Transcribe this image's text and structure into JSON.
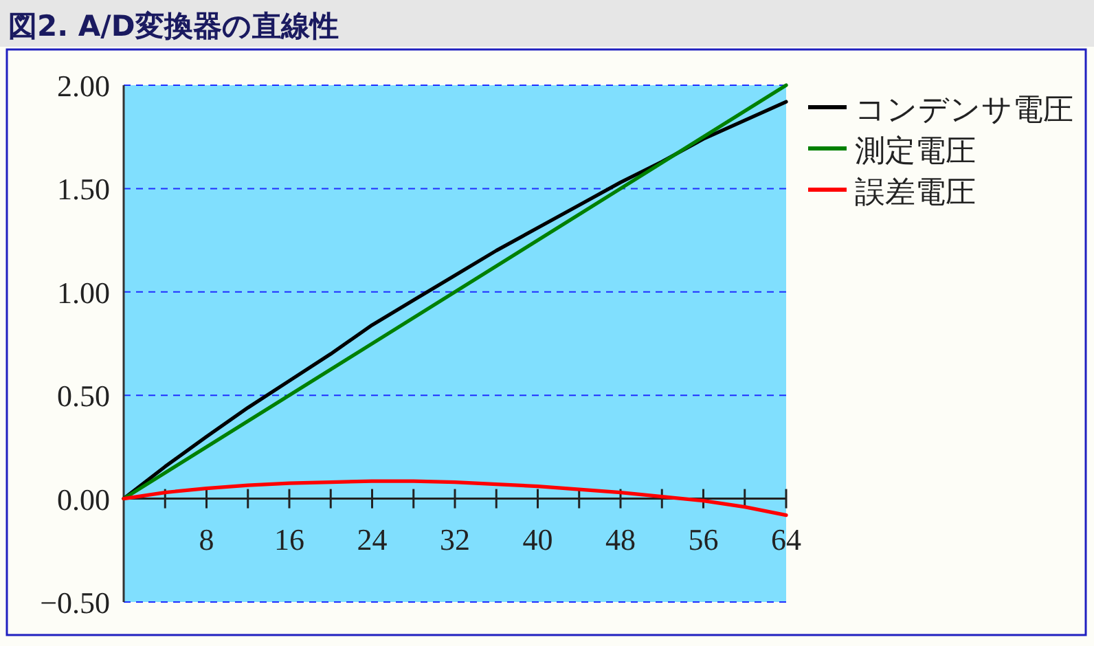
{
  "chart_data": {
    "type": "line",
    "title": "図2. A/D変換器の直線性",
    "xlim": [
      0,
      64
    ],
    "xticks": [
      {
        "value": 4,
        "label": null
      },
      {
        "value": 8,
        "label": "8"
      },
      {
        "value": 12,
        "label": null
      },
      {
        "value": 16,
        "label": "16"
      },
      {
        "value": 20,
        "label": null
      },
      {
        "value": 24,
        "label": "24"
      },
      {
        "value": 28,
        "label": null
      },
      {
        "value": 32,
        "label": "32"
      },
      {
        "value": 36,
        "label": null
      },
      {
        "value": 40,
        "label": "40"
      },
      {
        "value": 44,
        "label": null
      },
      {
        "value": 48,
        "label": "48"
      },
      {
        "value": 52,
        "label": null
      },
      {
        "value": 56,
        "label": "56"
      },
      {
        "value": 60,
        "label": null
      },
      {
        "value": 64,
        "label": "64"
      }
    ],
    "ylim": [
      -0.5,
      2.0
    ],
    "yticks": [
      {
        "value": -0.5,
        "label": "−0.50"
      },
      {
        "value": 0,
        "label": "0.00"
      },
      {
        "value": 0.5,
        "label": "0.50"
      },
      {
        "value": 1,
        "label": "1.00"
      },
      {
        "value": 1.5,
        "label": "1.50"
      },
      {
        "value": 2,
        "label": "2.00"
      }
    ],
    "grid": "y",
    "legend": "right",
    "line_style": "solid",
    "marker": "none",
    "series": [
      {
        "name": "コンデンサ電圧",
        "color": "#000000",
        "x": [
          0,
          4,
          8,
          12,
          16,
          20,
          24,
          28,
          32,
          36,
          40,
          44,
          48,
          52,
          56,
          60,
          64
        ],
        "values": [
          0,
          0.155,
          0.3,
          0.44,
          0.57,
          0.7,
          0.84,
          0.96,
          1.08,
          1.2,
          1.31,
          1.42,
          1.53,
          1.63,
          1.74,
          1.83,
          1.92
        ]
      },
      {
        "name": "測定電圧",
        "color": "#008000",
        "x": [
          0,
          64
        ],
        "values": [
          0,
          2.0
        ]
      },
      {
        "name": "誤差電圧",
        "color": "#ff0000",
        "x": [
          0,
          4,
          8,
          12,
          16,
          20,
          24,
          28,
          32,
          36,
          40,
          44,
          48,
          52,
          56,
          60,
          64
        ],
        "values": [
          0,
          0.03,
          0.05,
          0.065,
          0.075,
          0.08,
          0.085,
          0.085,
          0.08,
          0.07,
          0.06,
          0.045,
          0.03,
          0.01,
          -0.01,
          -0.04,
          -0.08
        ]
      }
    ]
  }
}
